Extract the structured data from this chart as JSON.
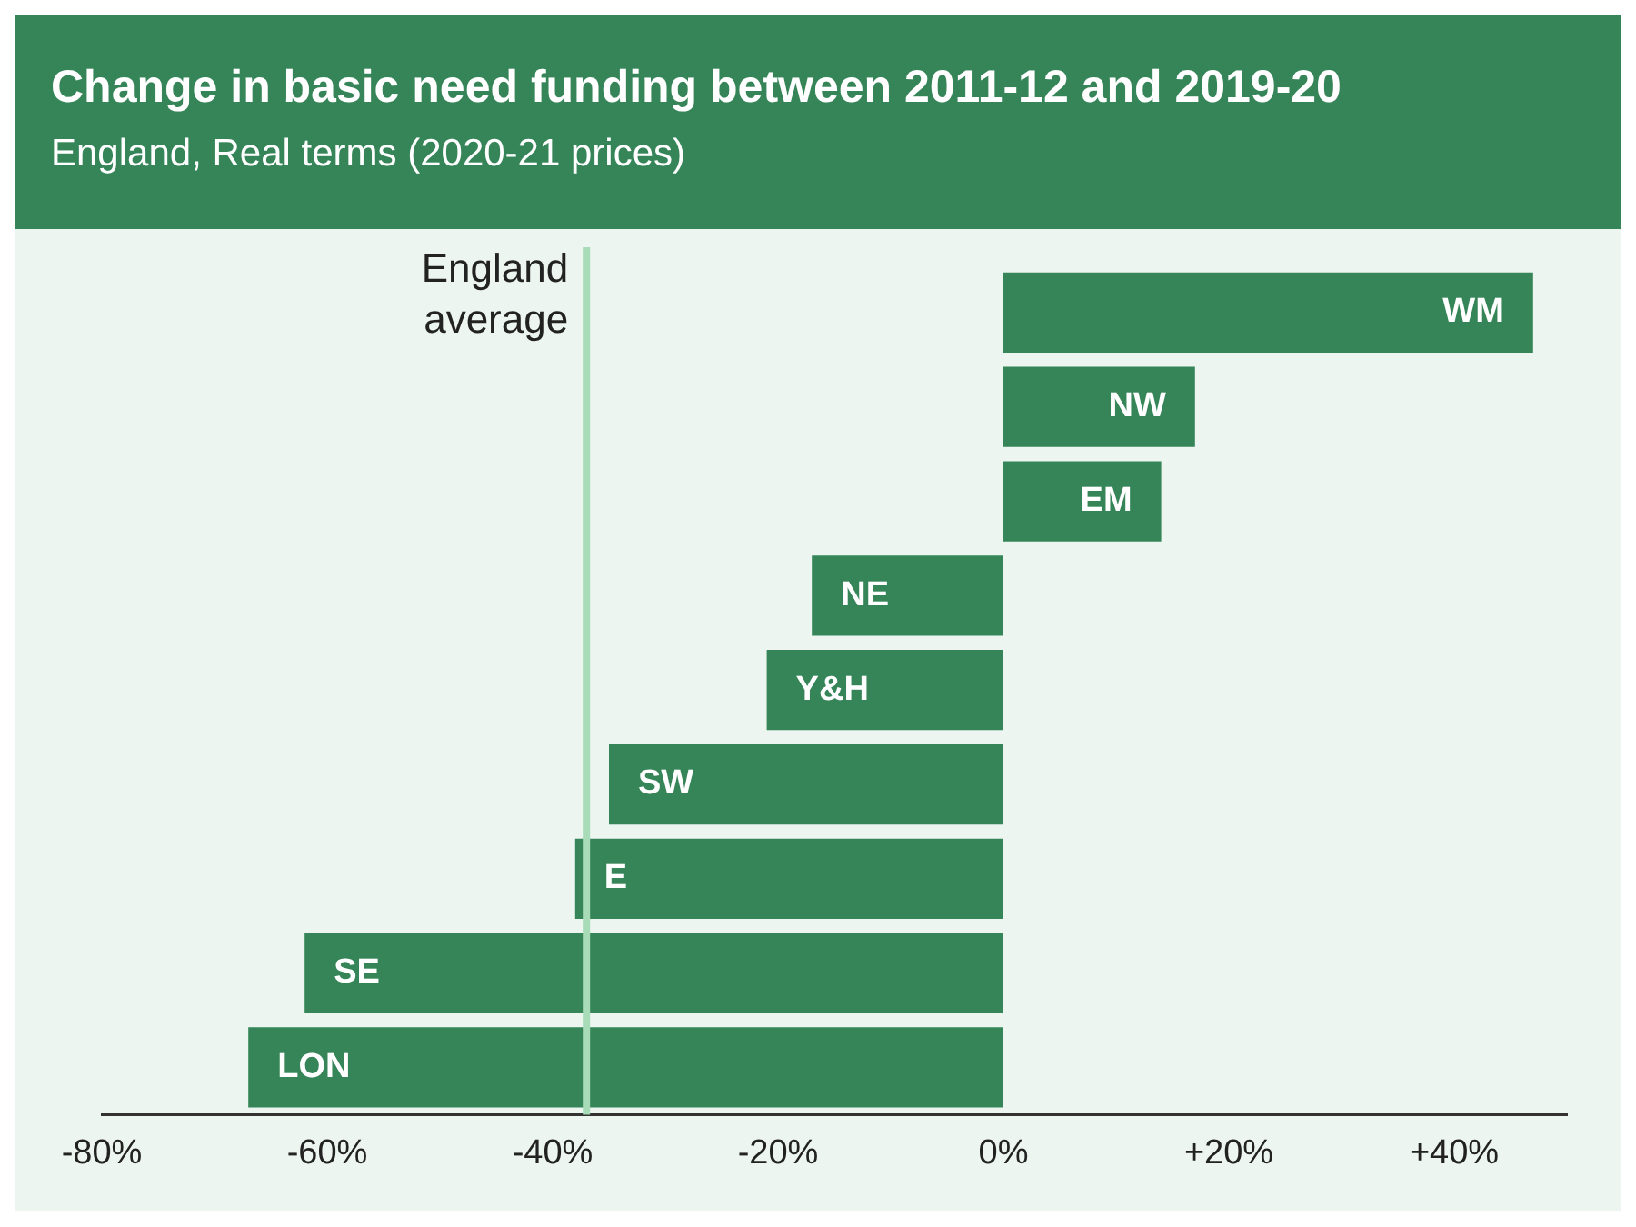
{
  "chart_data": {
    "type": "bar",
    "orientation": "horizontal",
    "title": "Change in basic need funding between 2011-12 and 2019-20",
    "subtitle": "England, Real terms (2020-21 prices)",
    "categories": [
      "WM",
      "NW",
      "EM",
      "NE",
      "Y&H",
      "SW",
      "E",
      "SE",
      "LON"
    ],
    "values": [
      47,
      17,
      14,
      -17,
      -21,
      -35,
      -38,
      -62,
      -67
    ],
    "color": "#358558",
    "xlim": [
      -80,
      50
    ],
    "xticks": [
      {
        "value": -80,
        "label": "-80%"
      },
      {
        "value": -60,
        "label": "-60%"
      },
      {
        "value": -40,
        "label": "-40%"
      },
      {
        "value": -20,
        "label": "-20%"
      },
      {
        "value": 0,
        "label": "0%"
      },
      {
        "value": 20,
        "label": "+20%"
      },
      {
        "value": 40,
        "label": "+40%"
      }
    ],
    "ref_lines": [
      {
        "axis": "x",
        "value": -37,
        "label": "England average",
        "color": "#a8dcb8"
      }
    ],
    "grid": false,
    "legend": false
  }
}
